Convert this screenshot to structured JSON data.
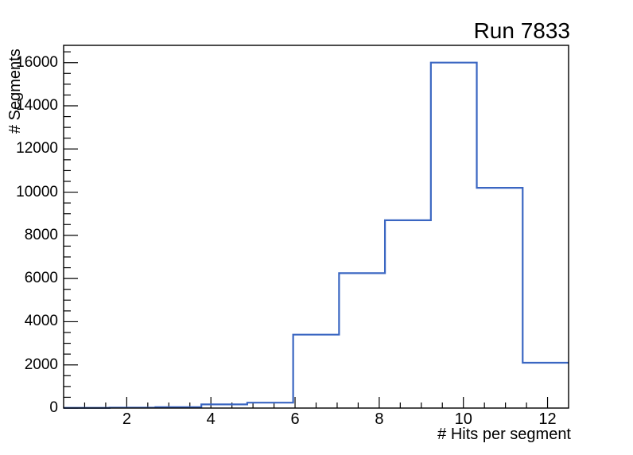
{
  "title": "Run 7833",
  "chart_data": {
    "type": "histogram-step",
    "title": "Run 7833",
    "grid": false,
    "legend": null,
    "line_color": "#3a66c2",
    "axis_color": "#000000",
    "background_color": "#ffffff",
    "x_axis": {
      "title": "# Hits per segment",
      "range": [
        0.5,
        12.5
      ],
      "tick_values": [
        2,
        4,
        6,
        8,
        10,
        12
      ],
      "tick_labels": [
        "2",
        "4",
        "6",
        "8",
        "10",
        "12"
      ],
      "minor_tick_step": 0.5
    },
    "y_axis": {
      "title": "# Segments",
      "range": [
        0,
        16800
      ],
      "tick_values": [
        0,
        2000,
        4000,
        6000,
        8000,
        10000,
        12000,
        14000,
        16000
      ],
      "tick_labels": [
        "0",
        "2000",
        "4000",
        "6000",
        "8000",
        "10000",
        "12000",
        "14000",
        "16000"
      ],
      "minor_tick_step": 500
    },
    "bin_edges": [
      0.5,
      1.5909,
      2.6818,
      3.7727,
      4.8636,
      5.9545,
      7.0455,
      8.1364,
      9.2273,
      10.3182,
      11.4091,
      12.5
    ],
    "counts": [
      10,
      20,
      40,
      170,
      250,
      3400,
      6250,
      8700,
      16000,
      10200,
      2100
    ]
  }
}
